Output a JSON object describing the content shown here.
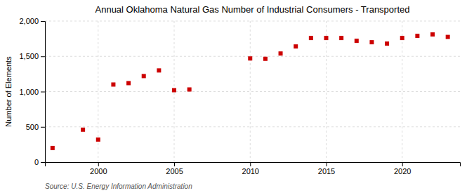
{
  "chart_data": {
    "type": "scatter",
    "title": "Annual Oklahoma Natural Gas Number of Industrial Consumers - Transported",
    "ylabel": "Number of Elements",
    "source": "Source: U.S. Energy Information Administration",
    "x": [
      1997,
      1999,
      2000,
      2001,
      2002,
      2003,
      2004,
      2005,
      2006,
      2010,
      2011,
      2012,
      2013,
      2014,
      2015,
      2016,
      2017,
      2018,
      2019,
      2020,
      2021,
      2022,
      2023
    ],
    "values": [
      200,
      460,
      320,
      1100,
      1120,
      1220,
      1300,
      1020,
      1030,
      1470,
      1465,
      1540,
      1640,
      1760,
      1760,
      1760,
      1720,
      1700,
      1680,
      1760,
      1790,
      1810,
      1775
    ],
    "color": "#cc0000",
    "marker": "square",
    "xlim": [
      1996.5,
      2023.8
    ],
    "xticks": [
      2000,
      2005,
      2010,
      2015,
      2020
    ],
    "ylim": [
      0,
      2000
    ],
    "yticks": [
      0,
      500,
      {
        "value": 1000,
        "label": "1,000"
      },
      {
        "value": 1500,
        "label": "1,500"
      },
      {
        "value": 2000,
        "label": "2,000"
      }
    ],
    "grid": true
  }
}
